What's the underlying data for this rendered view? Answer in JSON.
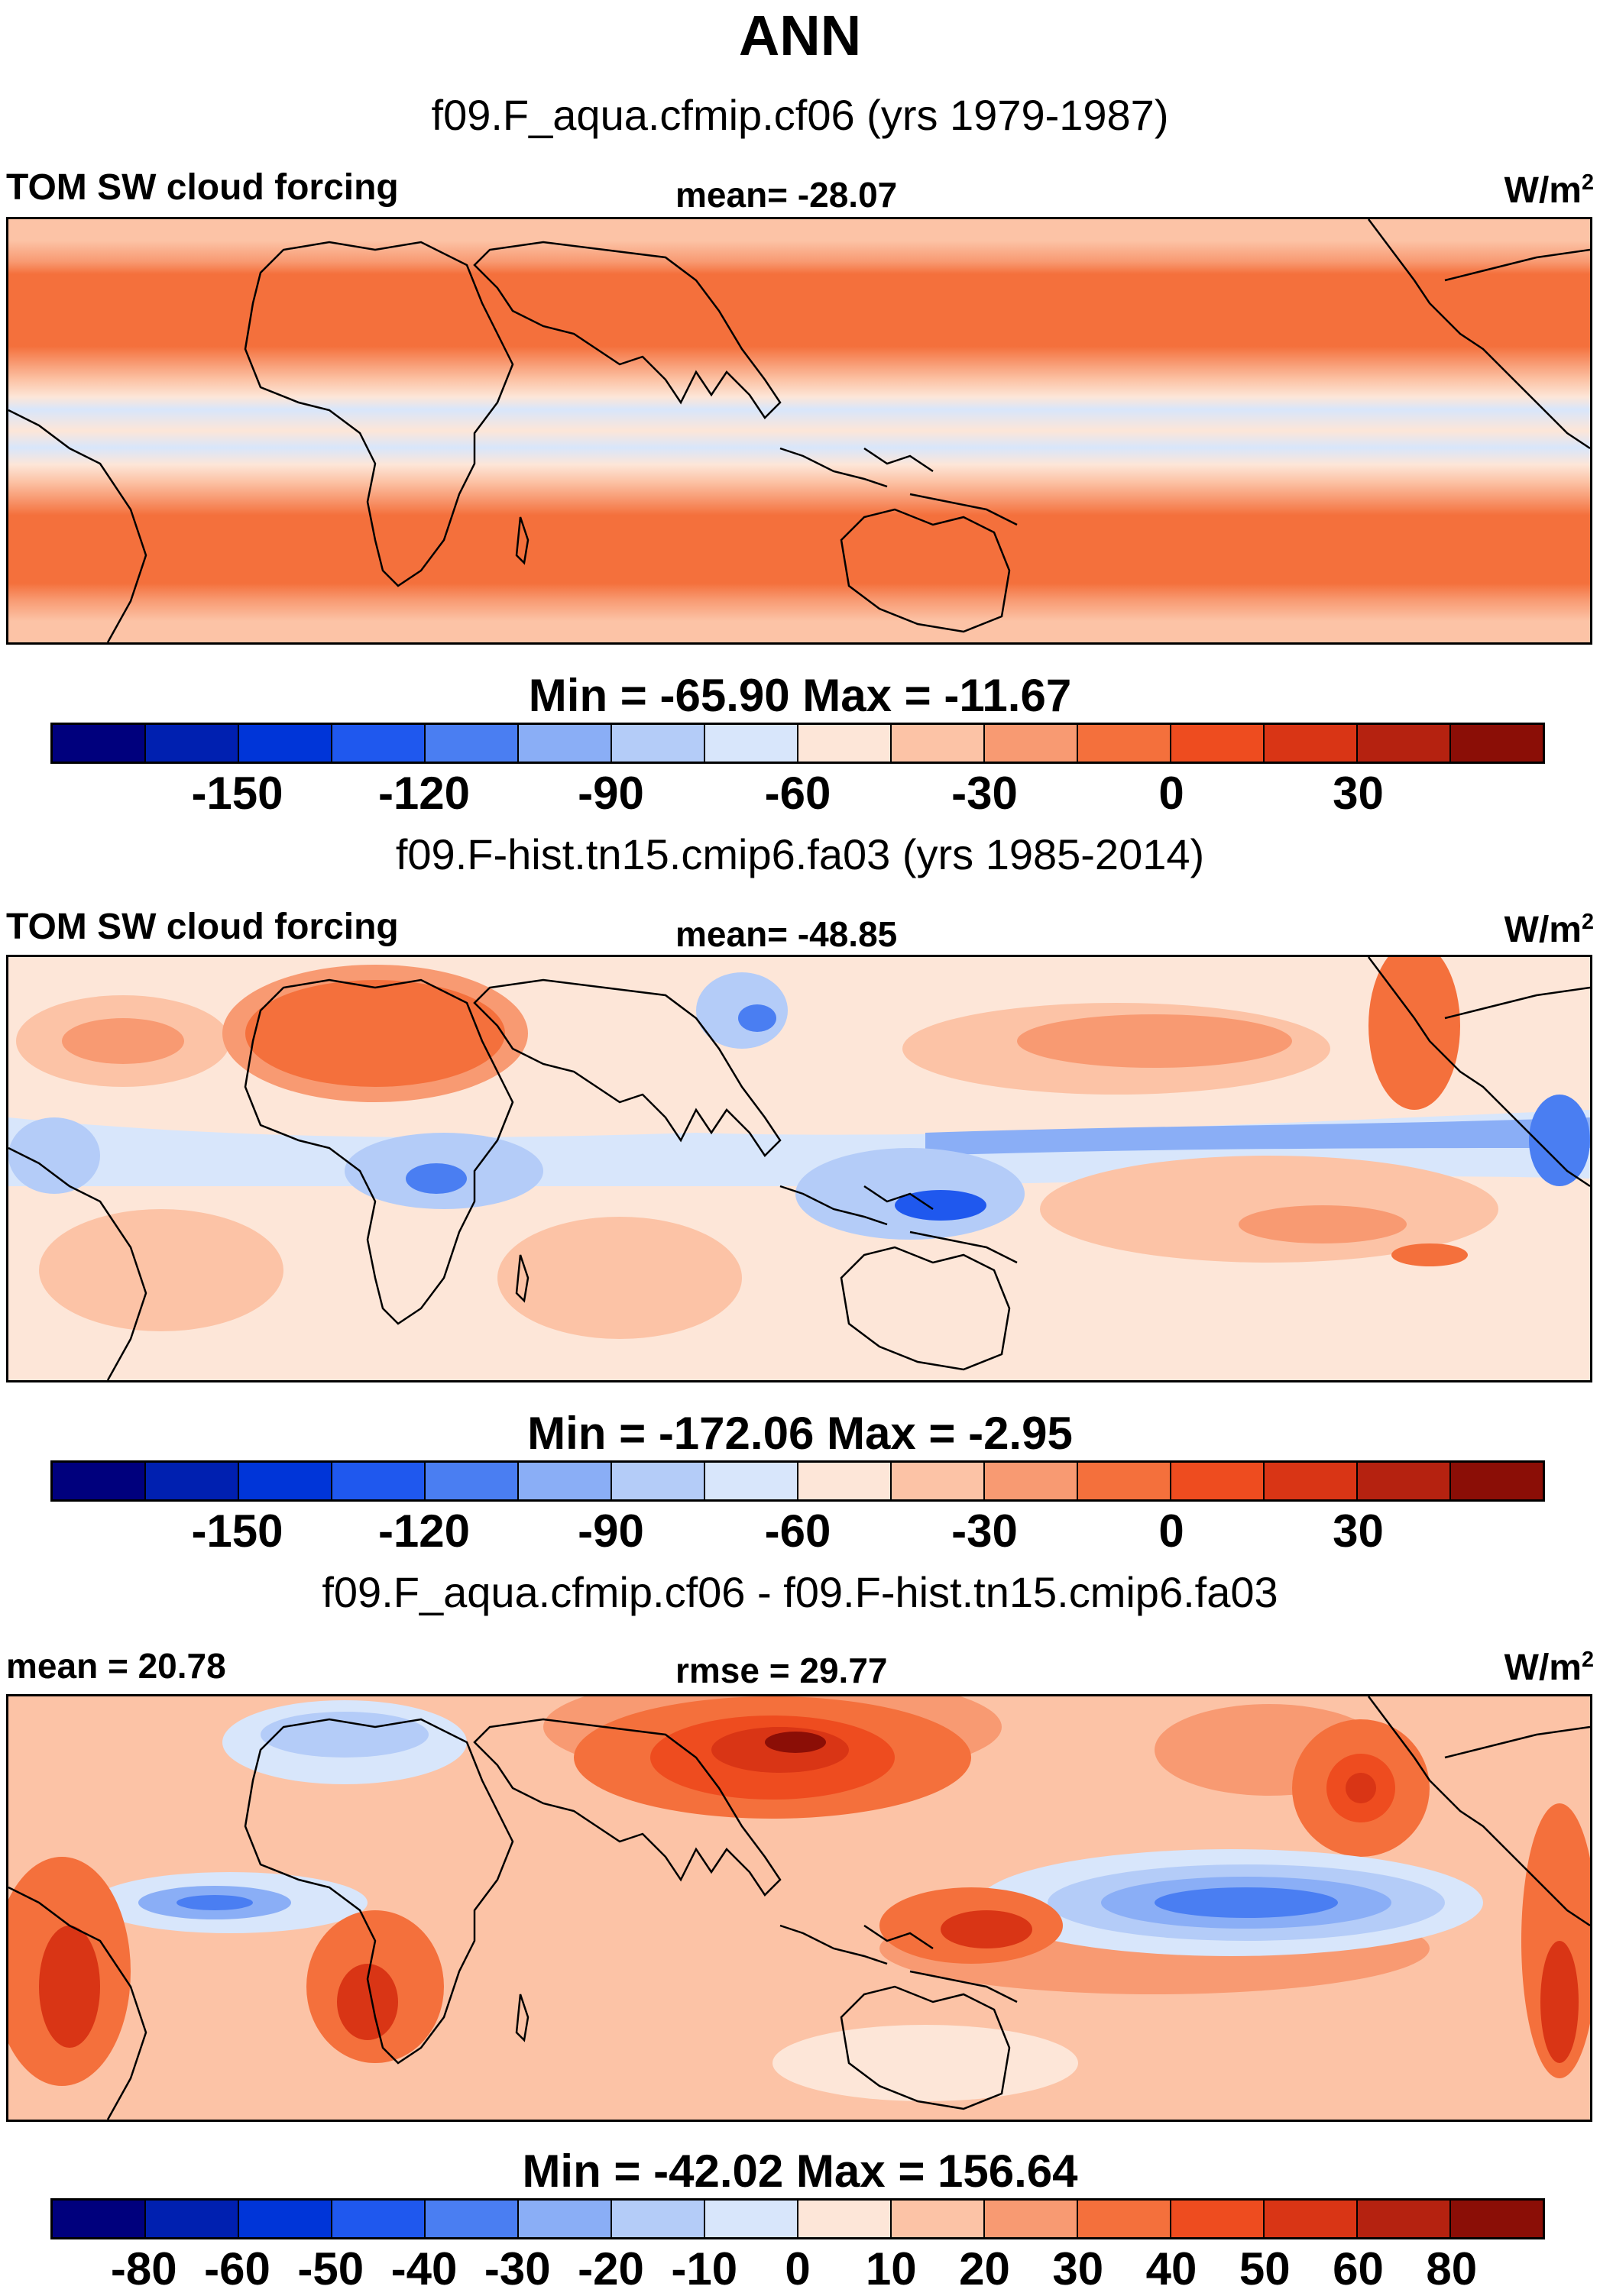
{
  "title": "ANN",
  "panels": [
    {
      "case": "f09.F_aqua.cfmip.cf06 (yrs 1979-1987)",
      "left_label": "TOM SW cloud forcing",
      "mid_label": "mean= -28.07",
      "units_base": "W/m",
      "units_exp": "2",
      "minmax": "Min = -65.90 Max = -11.67",
      "colorbar_ticks": [
        "-150",
        "-120",
        "-90",
        "-60",
        "-30",
        "0",
        "30"
      ]
    },
    {
      "case": "f09.F-hist.tn15.cmip6.fa03 (yrs 1985-2014)",
      "left_label": "TOM SW cloud forcing",
      "mid_label": "mean= -48.85",
      "units_base": "W/m",
      "units_exp": "2",
      "minmax": "Min = -172.06 Max =  -2.95",
      "colorbar_ticks": [
        "-150",
        "-120",
        "-90",
        "-60",
        "-30",
        "0",
        "30"
      ]
    },
    {
      "case": "f09.F_aqua.cfmip.cf06 - f09.F-hist.tn15.cmip6.fa03",
      "left_label": "mean =  20.78",
      "mid_label": "rmse =  29.77",
      "units_base": "W/m",
      "units_exp": "2",
      "minmax": "Min = -42.02 Max = 156.64",
      "colorbar_ticks": [
        "-80",
        "-60",
        "-50",
        "-40",
        "-30",
        "-20",
        "-10",
        "0",
        "10",
        "20",
        "30",
        "40",
        "50",
        "60",
        "80"
      ]
    }
  ],
  "colors": {
    "levels": [
      "#00007d",
      "#0020b0",
      "#0035d8",
      "#1f58ee",
      "#4a7ef2",
      "#8aaef6",
      "#b4ccf8",
      "#d8e6fb",
      "#fde6d8",
      "#fcc3a6",
      "#f89a72",
      "#f4703c",
      "#ee4c1f",
      "#d93515",
      "#b52210",
      "#8b0e06"
    ]
  },
  "chart_data": [
    {
      "type": "heatmap",
      "title": "f09.F_aqua.cfmip.cf06 (yrs 1979-1987)",
      "variable": "TOM SW cloud forcing",
      "units": "W/m2",
      "mean": -28.07,
      "min": -65.9,
      "max": -11.67,
      "colorbar_ticks": [
        -150,
        -120,
        -90,
        -60,
        -30,
        0,
        30
      ],
      "contour_levels": [
        -165,
        -150,
        -135,
        -120,
        -105,
        -90,
        -75,
        -60,
        -45,
        -30,
        -15,
        0,
        15,
        30,
        45
      ]
    },
    {
      "type": "heatmap",
      "title": "f09.F-hist.tn15.cmip6.fa03 (yrs 1985-2014)",
      "variable": "TOM SW cloud forcing",
      "units": "W/m2",
      "mean": -48.85,
      "min": -172.06,
      "max": -2.95,
      "colorbar_ticks": [
        -150,
        -120,
        -90,
        -60,
        -30,
        0,
        30
      ],
      "contour_levels": [
        -165,
        -150,
        -135,
        -120,
        -105,
        -90,
        -75,
        -60,
        -45,
        -30,
        -15,
        0,
        15,
        30,
        45
      ]
    },
    {
      "type": "heatmap",
      "title": "f09.F_aqua.cfmip.cf06 - f09.F-hist.tn15.cmip6.fa03",
      "units": "W/m2",
      "mean": 20.78,
      "rmse": 29.77,
      "min": -42.02,
      "max": 156.64,
      "colorbar_ticks": [
        -80,
        -60,
        -50,
        -40,
        -30,
        -20,
        -10,
        0,
        10,
        20,
        30,
        40,
        50,
        60,
        80
      ],
      "contour_levels": [
        -100,
        -80,
        -60,
        -50,
        -40,
        -30,
        -20,
        -10,
        0,
        10,
        20,
        30,
        40,
        50,
        60,
        80,
        100
      ]
    }
  ]
}
